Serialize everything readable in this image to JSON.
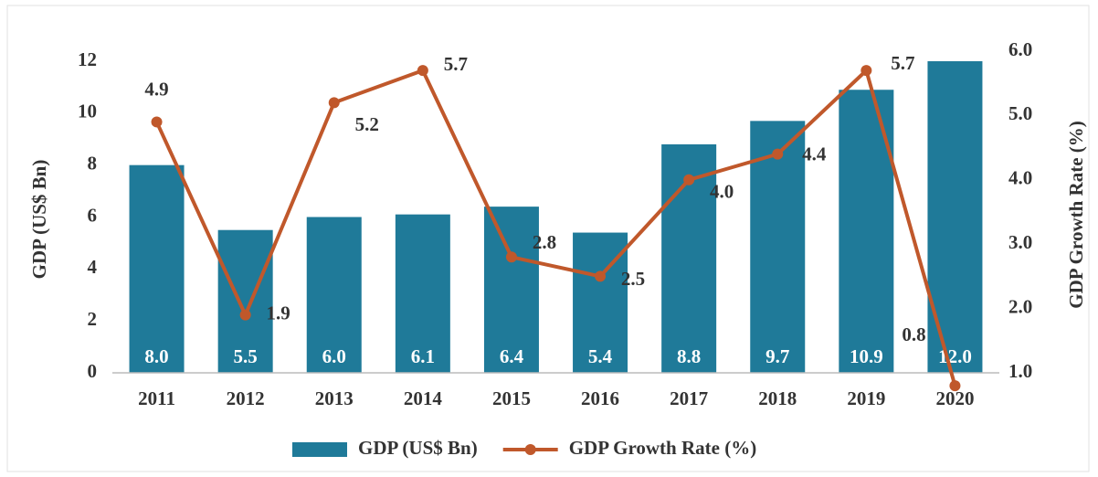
{
  "chart_data": {
    "type": "bar+line",
    "categories": [
      "2011",
      "2012",
      "2013",
      "2014",
      "2015",
      "2016",
      "2017",
      "2018",
      "2019",
      "2020"
    ],
    "series": [
      {
        "name": "GDP (US$ Bn)",
        "type": "bar",
        "axis": "y",
        "color": "#1f7a99",
        "values": [
          8.0,
          5.5,
          6.0,
          6.1,
          6.4,
          5.4,
          8.8,
          9.7,
          10.9,
          12.0
        ],
        "value_labels": [
          "8.0",
          "5.5",
          "6.0",
          "6.1",
          "6.4",
          "5.4",
          "8.8",
          "9.7",
          "10.9",
          "12.0"
        ]
      },
      {
        "name": "GDP Growth Rate (%)",
        "type": "line",
        "axis": "y2",
        "color": "#c0582b",
        "values": [
          4.9,
          1.9,
          5.2,
          5.7,
          2.8,
          2.5,
          4.0,
          4.4,
          5.7,
          0.8
        ],
        "value_labels": [
          "4.9",
          "1.9",
          "5.2",
          "5.7",
          "2.8",
          "2.5",
          "4.0",
          "4.4",
          "5.7",
          "0.8"
        ]
      }
    ],
    "y_label": "GDP (US$ Bn)",
    "y2_label": "GDP Growth Rate (%)",
    "ylim": [
      0,
      12
    ],
    "yticks": [
      0,
      2,
      4,
      6,
      8,
      10,
      12
    ],
    "y2lim": [
      1,
      6
    ],
    "y2ticks": [
      {
        "value": 1,
        "label": "1.0"
      },
      {
        "value": 2,
        "label": "2.0"
      },
      {
        "value": 3,
        "label": "3.0"
      },
      {
        "value": 4,
        "label": "4.0"
      },
      {
        "value": 5,
        "label": "5.0"
      },
      {
        "value": 6,
        "label": "6.0"
      }
    ],
    "legend": "bottom"
  }
}
